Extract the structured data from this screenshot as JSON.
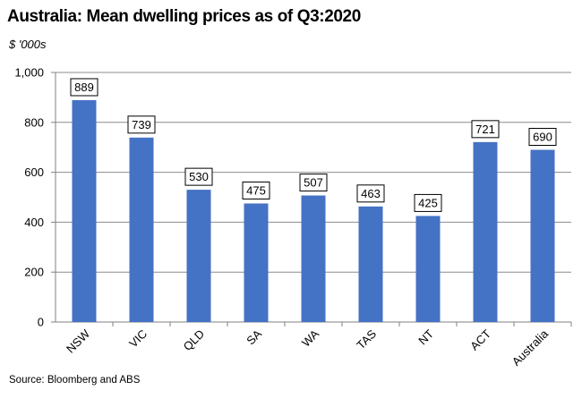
{
  "title": "Australia: Mean dwelling prices as of Q3:2020",
  "unit_label": "$ '000s",
  "source": "Source: Bloomberg and ABS",
  "colors": {
    "bar": "#4472C4",
    "grid": "#8C8C8C",
    "axis": "#808080"
  },
  "chart_data": {
    "type": "bar",
    "categories": [
      "NSW",
      "VIC",
      "QLD",
      "SA",
      "WA",
      "TAS",
      "NT",
      "ACT",
      "Australia"
    ],
    "values": [
      889,
      739,
      530,
      475,
      507,
      463,
      425,
      721,
      690
    ],
    "ylim": [
      0,
      1000
    ],
    "yticks": [
      0,
      200,
      400,
      600,
      800,
      1000
    ],
    "ytick_labels": [
      "0",
      "200",
      "400",
      "600",
      "800",
      "1,000"
    ],
    "grid": true,
    "data_labels": true
  }
}
